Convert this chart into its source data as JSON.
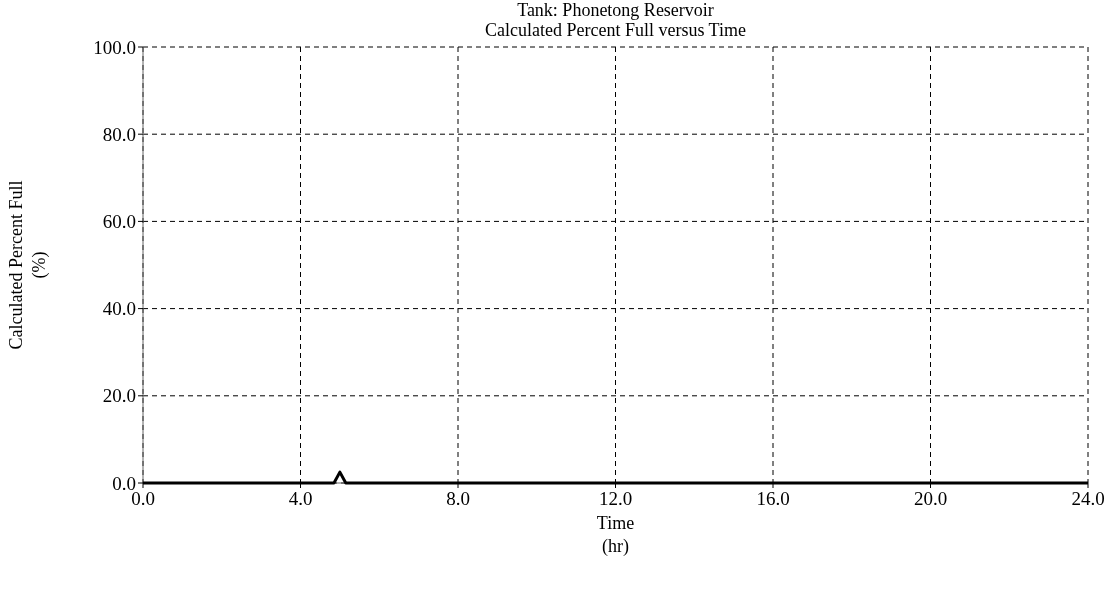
{
  "chart_data": {
    "type": "line",
    "title": "Tank: Phonetong Reservoir\nCalculated Percent Full versus Time",
    "xlabel": "Time\n(hr)",
    "ylabel": "Calculated Percent Full\n(%)",
    "x": [
      0,
      4.85,
      5,
      5.15,
      24
    ],
    "series": [
      {
        "color": "#000000",
        "values": [
          0,
          0,
          2.5,
          0,
          0
        ]
      }
    ],
    "xlim": [
      0,
      24
    ],
    "xticks": [
      {
        "value": 0,
        "label": "0.0"
      },
      {
        "value": 4,
        "label": "4.0"
      },
      {
        "value": 8,
        "label": "8.0"
      },
      {
        "value": 12,
        "label": "12.0"
      },
      {
        "value": 16,
        "label": "16.0"
      },
      {
        "value": 20,
        "label": "20.0"
      },
      {
        "value": 24,
        "label": "24.0"
      }
    ],
    "ylim": [
      0,
      100
    ],
    "yticks": [
      {
        "value": 0,
        "label": "0.0"
      },
      {
        "value": 20,
        "label": "20.0"
      },
      {
        "value": 40,
        "label": "40.0"
      },
      {
        "value": 60,
        "label": "60.0"
      },
      {
        "value": 80,
        "label": "80.0"
      },
      {
        "value": 100,
        "label": "100.0"
      }
    ],
    "grid": true,
    "line_style": "solid",
    "marker": "none"
  }
}
